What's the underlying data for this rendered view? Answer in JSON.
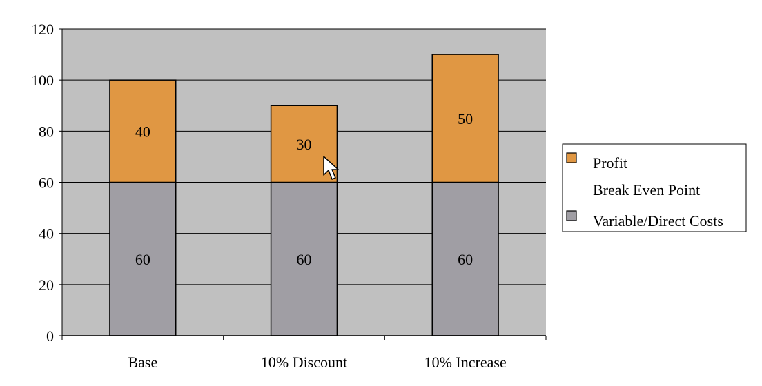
{
  "chart_data": {
    "type": "bar",
    "stacked": true,
    "title": "",
    "xlabel": "",
    "ylabel": "",
    "categories": [
      "Base",
      "10% Discount",
      "10% Increase"
    ],
    "ylim": [
      0,
      120
    ],
    "yticks": [
      0,
      20,
      40,
      60,
      80,
      100,
      120
    ],
    "grid": true,
    "legend_position": "right",
    "series": [
      {
        "name": "Variable/Direct Costs",
        "color": "#a09ea4",
        "values": [
          60,
          60,
          60
        ]
      },
      {
        "name": "Profit",
        "color": "#e09743",
        "values": [
          40,
          30,
          50
        ]
      }
    ],
    "legend": [
      {
        "label": "Profit",
        "color": "#e09743",
        "swatch": true
      },
      {
        "label": "Break Even Point",
        "color": "",
        "swatch": false
      },
      {
        "label": "Variable/Direct Costs",
        "color": "#a09ea4",
        "swatch": true
      }
    ],
    "plot_background": "#c0c0c0"
  }
}
